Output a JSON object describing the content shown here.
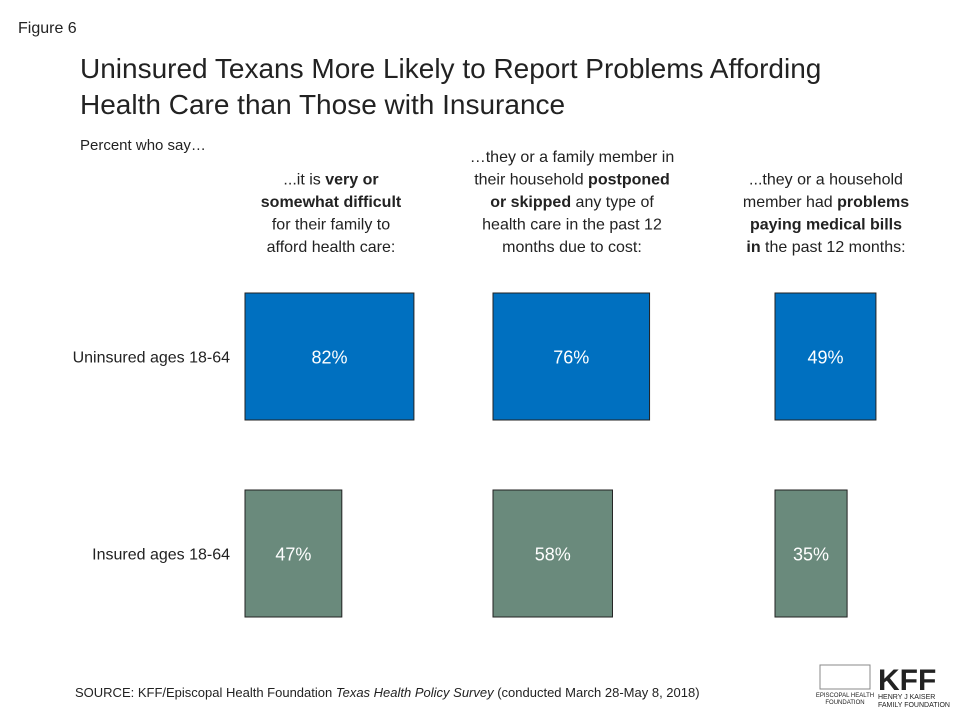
{
  "figure_label": "Figure 6",
  "chart_data": {
    "type": "proportional-box",
    "title": [
      "Uninsured Texans More Likely to Report Problems Affording",
      "Health Care than Those with Insurance"
    ],
    "subtitle": "Percent who say…",
    "categories": [
      [
        [
          {
            "text": "...it is ",
            "bold": false
          },
          {
            "text": "very or",
            "bold": true
          }
        ],
        [
          {
            "text": "somewhat difficult",
            "bold": true
          }
        ],
        [
          {
            "text": "for their family to",
            "bold": false
          }
        ],
        [
          {
            "text": "afford health care:",
            "bold": false
          }
        ]
      ],
      [
        [
          {
            "text": "…they or a family member in",
            "bold": false
          }
        ],
        [
          {
            "text": "their household ",
            "bold": false
          },
          {
            "text": "postponed",
            "bold": true
          }
        ],
        [
          {
            "text": "or skipped",
            "bold": true
          },
          {
            "text": " any type of",
            "bold": false
          }
        ],
        [
          {
            "text": "health care in the past 12",
            "bold": false
          }
        ],
        [
          {
            "text": "months due to cost:",
            "bold": false
          }
        ]
      ],
      [
        [
          {
            "text": "...they or a household",
            "bold": false
          }
        ],
        [
          {
            "text": "member had ",
            "bold": false
          },
          {
            "text": "problems",
            "bold": true
          }
        ],
        [
          {
            "text": "paying medical bills",
            "bold": true
          }
        ],
        [
          {
            "text": "in",
            "bold": true
          },
          {
            "text": " the past 12 months:",
            "bold": false
          }
        ]
      ]
    ],
    "series": [
      {
        "name": "Uninsured ages 18-64",
        "color": "#0070c0",
        "values": [
          82,
          76,
          49
        ],
        "value_labels": [
          "82%",
          "76%",
          "49%"
        ]
      },
      {
        "name": "Insured ages 18-64",
        "color": "#6a8a7c",
        "values": [
          47,
          58,
          35
        ],
        "value_labels": [
          "47%",
          "58%",
          "35%"
        ]
      }
    ],
    "source": [
      {
        "text": "SOURCE: KFF/Episcopal Health Foundation ",
        "italic": false
      },
      {
        "text": "Texas Health Policy Survey",
        "italic": true
      },
      {
        "text": " (conducted March 28-May 8, 2018)",
        "italic": false
      }
    ]
  },
  "logos": {
    "ehf": [
      "EPISCOPAL HEALTH",
      "FOUNDATION"
    ],
    "kff": "KFF",
    "kff_name": [
      "HENRY J KAISER",
      "FAMILY FOUNDATION"
    ]
  }
}
